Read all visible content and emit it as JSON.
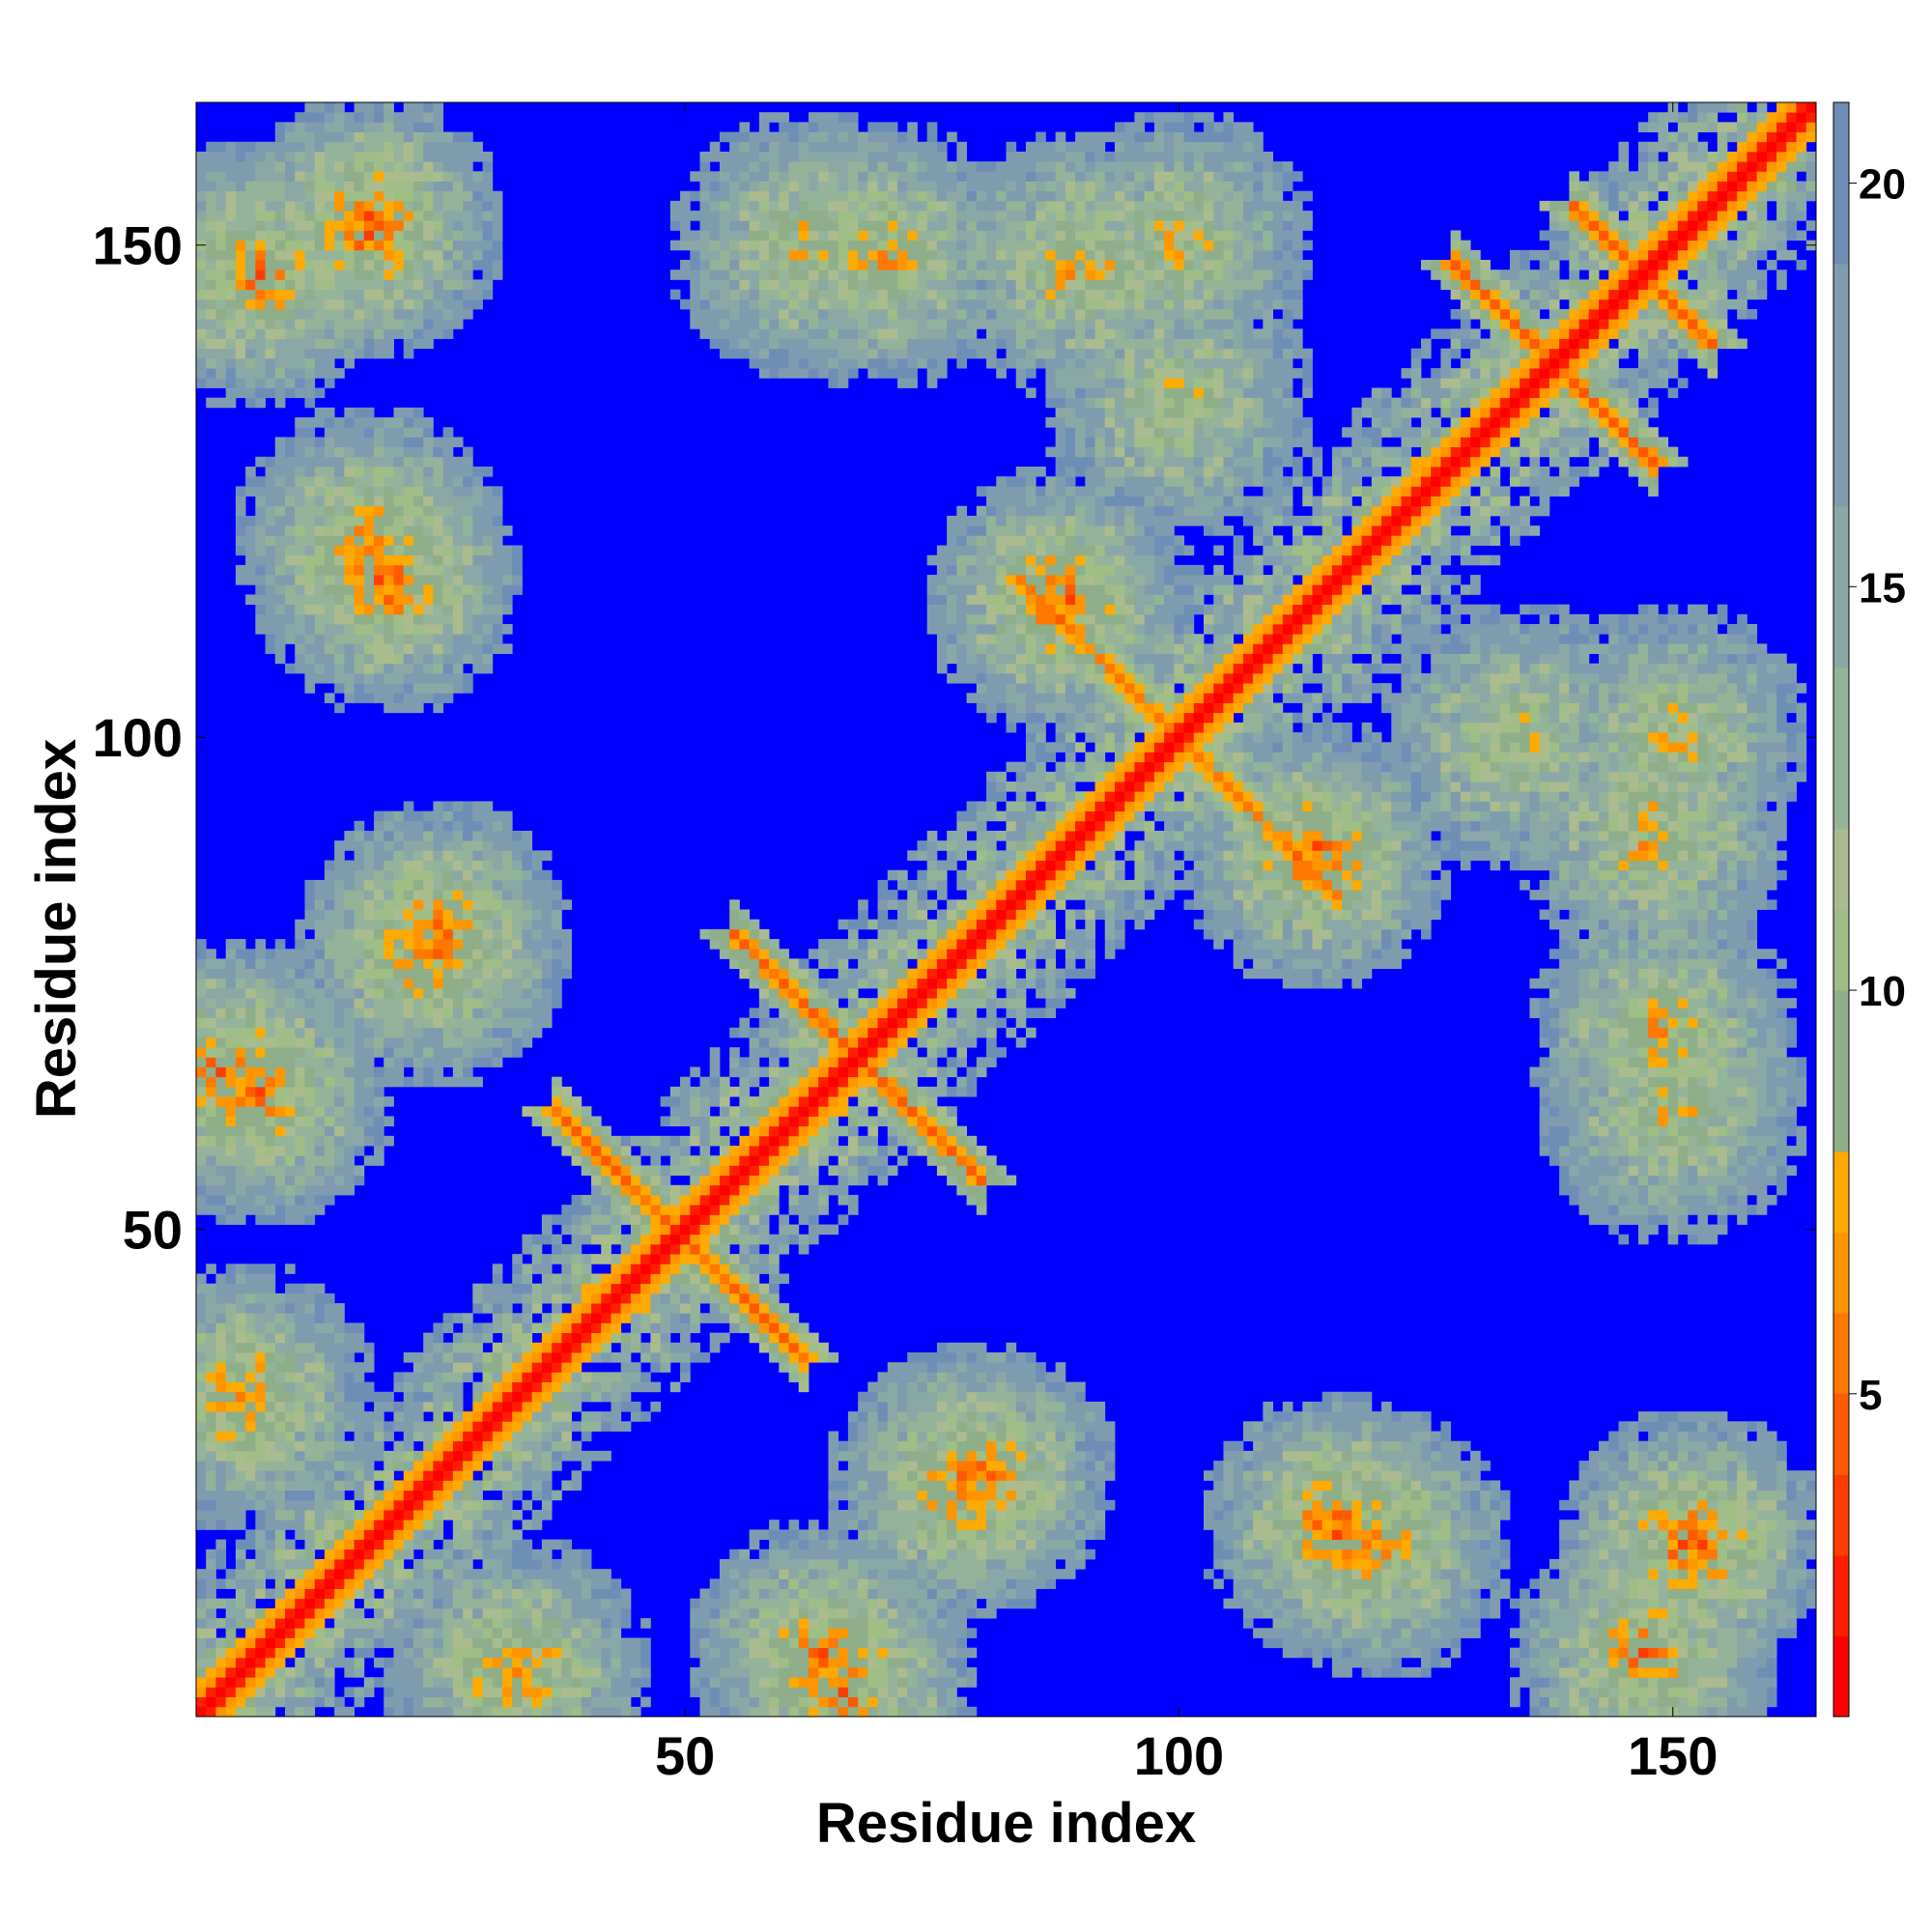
{
  "chart_data": {
    "type": "heatmap",
    "title": "",
    "xlabel": "Residue index",
    "ylabel": "Residue index",
    "n_residues": 164,
    "xlim": [
      1,
      164
    ],
    "ylim": [
      1,
      164
    ],
    "x_ticks": [
      50,
      100,
      150
    ],
    "y_ticks": [
      50,
      100,
      150
    ],
    "colorbar": {
      "range": [
        1,
        21
      ],
      "ticks": [
        5,
        10,
        15,
        20
      ],
      "colors": [
        "#ff0000",
        "#ff1e00",
        "#ff3c00",
        "#ff5a00",
        "#ff7800",
        "#ff9600",
        "#ffaa00",
        "#8fae8a",
        "#9fbe86",
        "#aabc8e",
        "#94b49a",
        "#8aa9a6",
        "#7f9caf",
        "#6f8eb6",
        "#0000ff"
      ],
      "color_stops": [
        1,
        2,
        3,
        4,
        5,
        6,
        7,
        8,
        10,
        11,
        12,
        14,
        16,
        19,
        21
      ]
    },
    "pattern": {
      "diagonal_value": 2,
      "contact_blobs": [
        {
          "i": 7,
          "j": 147,
          "value": 6
        },
        {
          "i": 18,
          "j": 120,
          "value": 6
        },
        {
          "i": 25,
          "j": 80,
          "value": 6
        },
        {
          "i": 4,
          "j": 66,
          "value": 5
        },
        {
          "i": 5,
          "j": 33,
          "value": 6
        },
        {
          "i": 62,
          "j": 150,
          "value": 8
        },
        {
          "i": 90,
          "j": 148,
          "value": 7
        },
        {
          "i": 116,
          "j": 20,
          "value": 5
        },
        {
          "i": 152,
          "j": 18,
          "value": 5
        },
        {
          "i": 149,
          "j": 70,
          "value": 7
        },
        {
          "i": 150,
          "j": 100,
          "value": 8
        },
        {
          "i": 134,
          "j": 100,
          "value": 8
        },
        {
          "i": 114,
          "j": 88,
          "value": 5
        },
        {
          "i": 78,
          "j": 24,
          "value": 6
        },
        {
          "i": 64,
          "j": 7,
          "value": 6
        }
      ],
      "antiparallel_strands": [
        {
          "from": [
            55,
            80
          ],
          "to": [
            80,
            55
          ],
          "value": 5
        },
        {
          "from": [
            37,
            62
          ],
          "to": [
            62,
            37
          ],
          "value": 5
        },
        {
          "from": [
            128,
            148
          ],
          "to": [
            148,
            128
          ],
          "value": 5
        },
        {
          "from": [
            84,
            116
          ],
          "to": [
            116,
            84
          ],
          "value": 6
        },
        {
          "from": [
            140,
            154
          ],
          "to": [
            154,
            140
          ],
          "value": 5
        }
      ]
    }
  }
}
